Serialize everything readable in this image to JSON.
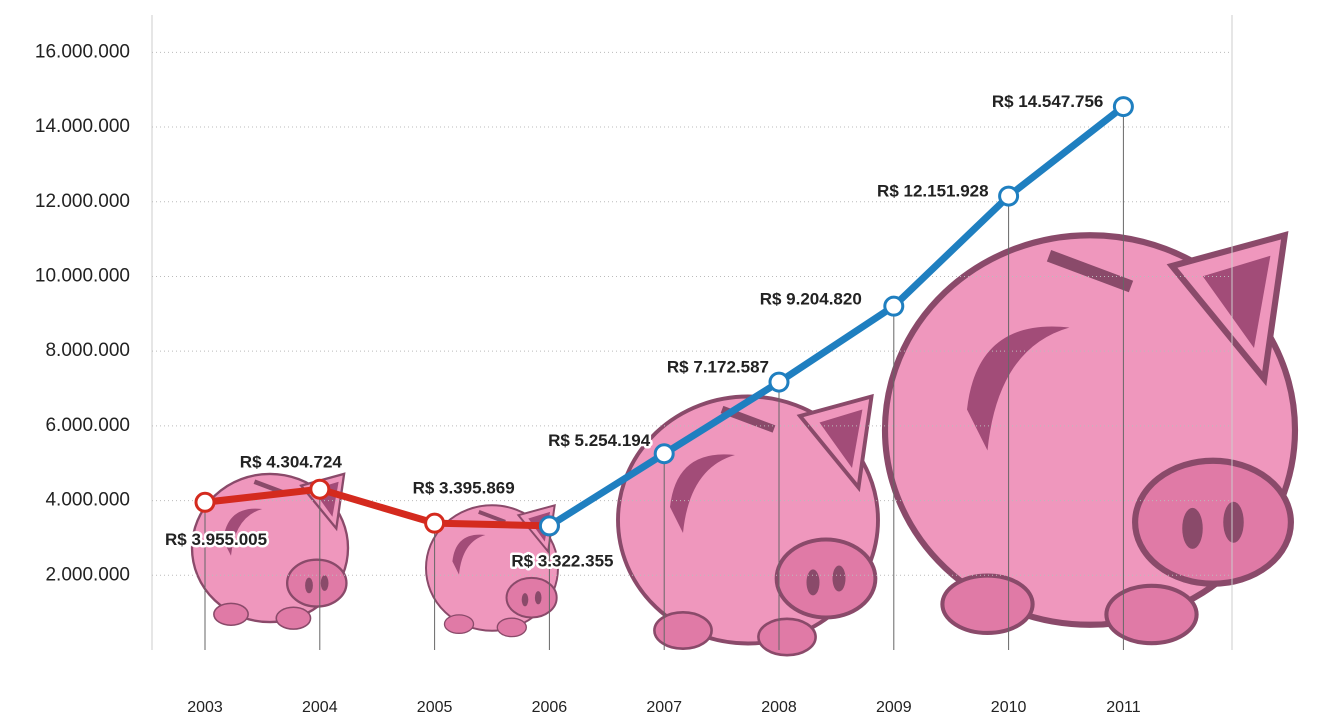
{
  "chart_data": {
    "type": "line",
    "categories": [
      "2003",
      "2004",
      "2005",
      "2006",
      "2007",
      "2008",
      "2009",
      "2010",
      "2011"
    ],
    "series": [
      {
        "color": "#d42a1e",
        "values": [
          3955005,
          4304724,
          3395869,
          3322355,
          null,
          null,
          null,
          null,
          null
        ],
        "value_labels": [
          "R$ 3.955.005",
          "R$ 4.304.724",
          "R$ 3.395.869",
          "R$ 3.322.355",
          null,
          null,
          null,
          null,
          null
        ]
      },
      {
        "color": "#1f7fc0",
        "values": [
          null,
          null,
          null,
          3322355,
          5254194,
          7172587,
          9204820,
          12151928,
          14547756
        ],
        "value_labels": [
          null,
          null,
          null,
          null,
          "R$ 5.254.194",
          "R$ 7.172.587",
          "R$ 9.204.820",
          "R$ 12.151.928",
          "R$ 14.547.756"
        ]
      }
    ],
    "ylim": [
      0,
      17000000
    ],
    "yticks": [
      {
        "value": 2000000,
        "label": "2.000.000"
      },
      {
        "value": 4000000,
        "label": "4.000.000"
      },
      {
        "value": 6000000,
        "label": "6.000.000"
      },
      {
        "value": 8000000,
        "label": "8.000.000"
      },
      {
        "value": 10000000,
        "label": "10.000.000"
      },
      {
        "value": 12000000,
        "label": "12.000.000"
      },
      {
        "value": 14000000,
        "label": "14.000.000"
      },
      {
        "value": 16000000,
        "label": "16.000.000"
      }
    ],
    "grid": true
  }
}
